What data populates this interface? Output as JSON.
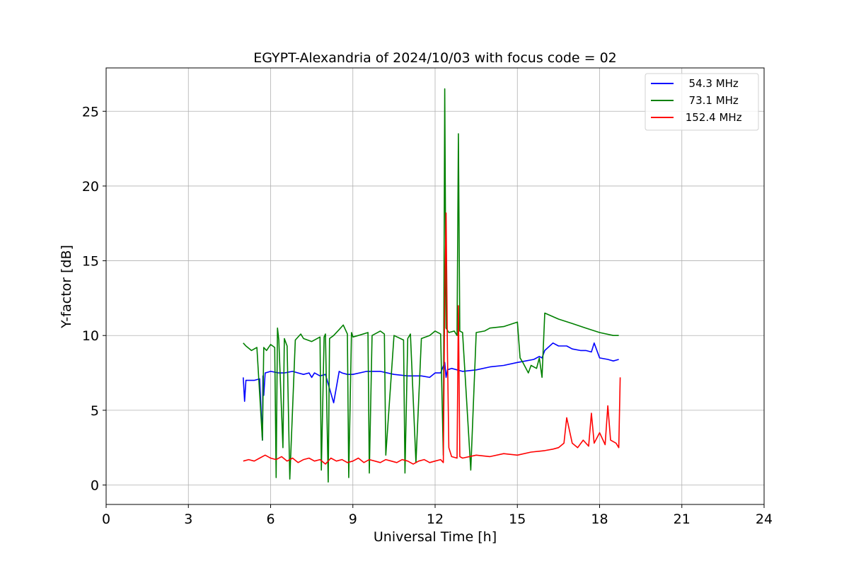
{
  "chart_data": {
    "type": "line",
    "title": "EGYPT-Alexandria of 2024/10/03 with focus code = 02",
    "xlabel": "Universal Time [h]",
    "ylabel": "Y-factor [dB]",
    "xlim": [
      0,
      24
    ],
    "ylim": [
      -1.3,
      27.9
    ],
    "xticks": [
      0,
      3,
      6,
      9,
      12,
      15,
      18,
      21,
      24
    ],
    "yticks": [
      0,
      5,
      10,
      15,
      20,
      25
    ],
    "grid": true,
    "legend_position": "top-right",
    "series": [
      {
        "name": "  54.3 MHz",
        "color": "#0000ff",
        "x": [
          5.0,
          5.05,
          5.1,
          5.4,
          5.6,
          5.7,
          5.72,
          5.75,
          5.8,
          6.0,
          6.3,
          6.5,
          6.8,
          7.0,
          7.2,
          7.4,
          7.5,
          7.6,
          7.8,
          8.0,
          8.3,
          8.5,
          8.6,
          8.8,
          9.0,
          9.5,
          10.0,
          10.5,
          11.0,
          11.5,
          11.8,
          12.0,
          12.2,
          12.35,
          12.4,
          12.45,
          12.6,
          13.0,
          13.5,
          14.0,
          14.5,
          15.0,
          15.3,
          15.6,
          15.8,
          15.9,
          16.0,
          16.3,
          16.5,
          16.8,
          17.0,
          17.3,
          17.5,
          17.7,
          17.8,
          18.0,
          18.3,
          18.5,
          18.7
        ],
        "y": [
          7.2,
          5.6,
          7.0,
          7.0,
          7.1,
          3.0,
          7.3,
          6.0,
          7.5,
          7.6,
          7.5,
          7.5,
          7.6,
          7.5,
          7.4,
          7.5,
          7.2,
          7.5,
          7.3,
          7.4,
          5.5,
          7.6,
          7.5,
          7.4,
          7.4,
          7.6,
          7.6,
          7.4,
          7.3,
          7.3,
          7.2,
          7.5,
          7.5,
          8.2,
          7.2,
          7.7,
          7.8,
          7.6,
          7.7,
          7.9,
          8.0,
          8.2,
          8.3,
          8.4,
          8.6,
          8.5,
          9.0,
          9.5,
          9.3,
          9.3,
          9.1,
          9.0,
          9.0,
          8.9,
          9.5,
          8.5,
          8.4,
          8.3,
          8.4
        ]
      },
      {
        "name": "  73.1 MHz",
        "color": "#008000",
        "x": [
          5.0,
          5.1,
          5.3,
          5.5,
          5.7,
          5.75,
          5.85,
          6.0,
          6.15,
          6.2,
          6.25,
          6.3,
          6.45,
          6.5,
          6.6,
          6.7,
          6.9,
          7.1,
          7.2,
          7.5,
          7.8,
          7.85,
          7.95,
          8.0,
          8.1,
          8.15,
          8.3,
          8.5,
          8.65,
          8.8,
          8.85,
          8.95,
          9.0,
          9.2,
          9.55,
          9.6,
          9.7,
          10.0,
          10.15,
          10.2,
          10.5,
          10.85,
          10.9,
          11.0,
          11.1,
          11.3,
          11.5,
          11.8,
          12.0,
          12.2,
          12.3,
          12.35,
          12.4,
          12.5,
          12.7,
          12.8,
          12.85,
          12.9,
          13.0,
          13.3,
          13.5,
          13.8,
          14.0,
          14.5,
          15.0,
          15.1,
          15.2,
          15.4,
          15.5,
          15.7,
          15.8,
          15.9,
          16.0,
          16.5,
          17.0,
          17.5,
          18.0,
          18.5,
          18.7
        ],
        "y": [
          9.5,
          9.3,
          9.0,
          9.2,
          3.0,
          9.2,
          9.0,
          9.4,
          9.2,
          0.5,
          10.5,
          9.7,
          2.5,
          9.8,
          9.3,
          0.4,
          9.7,
          10.1,
          9.8,
          9.6,
          9.9,
          1.0,
          9.9,
          10.1,
          0.2,
          9.8,
          10.0,
          10.4,
          10.7,
          10.1,
          0.5,
          10.2,
          9.9,
          10.0,
          10.2,
          0.8,
          10.0,
          10.3,
          10.1,
          2.0,
          10.0,
          9.7,
          0.8,
          9.8,
          10.1,
          1.5,
          9.8,
          10.0,
          10.3,
          10.1,
          2.0,
          26.5,
          10.5,
          10.2,
          10.3,
          10.0,
          23.5,
          10.3,
          10.2,
          1.0,
          10.2,
          10.3,
          10.5,
          10.6,
          10.9,
          8.5,
          8.2,
          7.5,
          8.0,
          7.8,
          8.5,
          7.2,
          11.5,
          11.1,
          10.8,
          10.5,
          10.2,
          10.0,
          10.0
        ]
      },
      {
        "name": " 152.4 MHz",
        "color": "#ff0000",
        "x": [
          5.0,
          5.2,
          5.4,
          5.6,
          5.8,
          6.0,
          6.2,
          6.4,
          6.6,
          6.8,
          7.0,
          7.2,
          7.4,
          7.6,
          7.8,
          8.0,
          8.2,
          8.4,
          8.6,
          8.8,
          9.0,
          9.2,
          9.4,
          9.6,
          9.8,
          10.0,
          10.2,
          10.4,
          10.6,
          10.8,
          11.0,
          11.2,
          11.4,
          11.6,
          11.8,
          12.0,
          12.2,
          12.3,
          12.35,
          12.4,
          12.45,
          12.5,
          12.6,
          12.8,
          12.85,
          12.9,
          13.0,
          13.5,
          14.0,
          14.5,
          15.0,
          15.5,
          16.0,
          16.3,
          16.5,
          16.7,
          16.8,
          17.0,
          17.2,
          17.4,
          17.6,
          17.7,
          17.8,
          18.0,
          18.2,
          18.3,
          18.4,
          18.6,
          18.7,
          18.75
        ],
        "y": [
          1.6,
          1.7,
          1.6,
          1.8,
          2.0,
          1.8,
          1.7,
          1.9,
          1.6,
          1.8,
          1.5,
          1.7,
          1.8,
          1.6,
          1.7,
          1.4,
          1.8,
          1.6,
          1.7,
          1.5,
          1.6,
          1.8,
          1.5,
          1.7,
          1.6,
          1.5,
          1.7,
          1.6,
          1.5,
          1.7,
          1.6,
          1.4,
          1.6,
          1.7,
          1.5,
          1.6,
          1.7,
          1.5,
          12.5,
          18.2,
          9.0,
          2.5,
          1.9,
          1.8,
          12.0,
          1.9,
          1.8,
          2.0,
          1.9,
          2.1,
          2.0,
          2.2,
          2.3,
          2.4,
          2.5,
          2.8,
          4.5,
          2.8,
          2.5,
          3.0,
          2.6,
          4.8,
          2.8,
          3.5,
          2.7,
          5.3,
          3.0,
          2.8,
          2.5,
          7.2
        ]
      }
    ]
  }
}
